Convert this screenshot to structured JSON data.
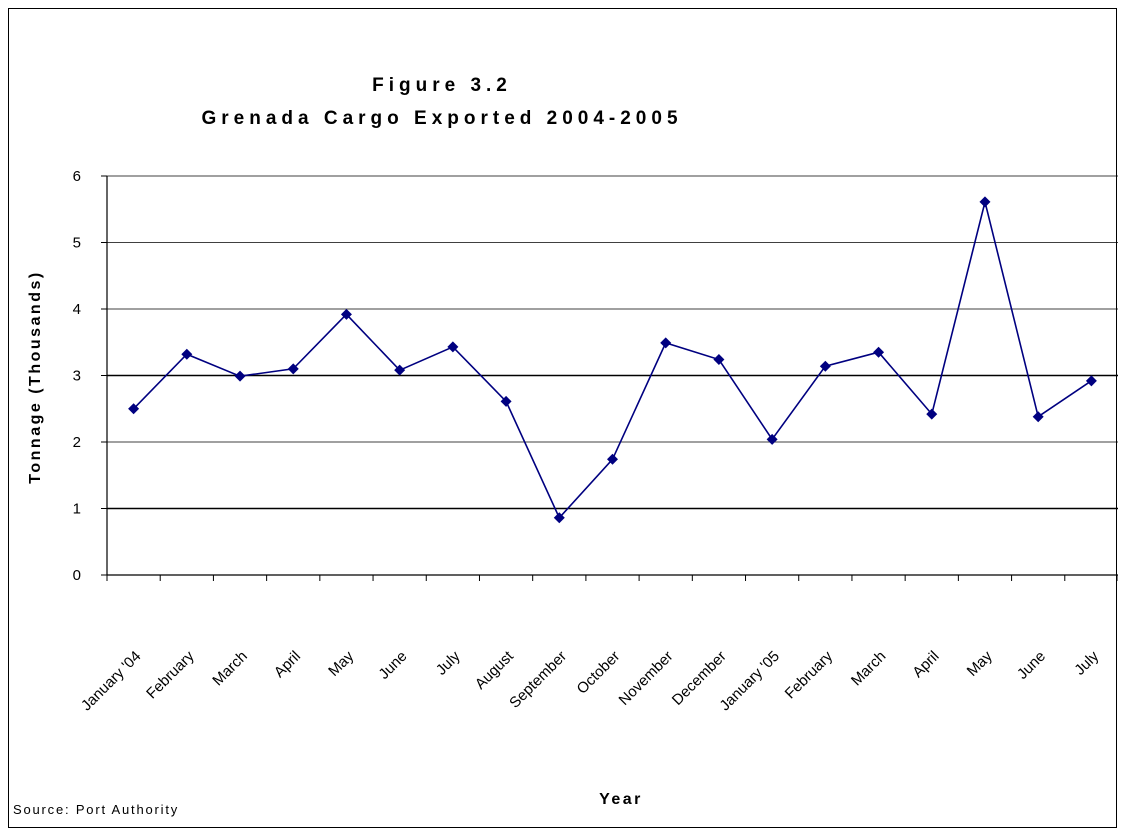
{
  "chart_data": {
    "type": "line",
    "title": "Figure 3.2",
    "subtitle": "Grenada Cargo Exported 2004-2005",
    "xlabel": "Year",
    "ylabel": "Tonnage (Thousands)",
    "source": "Source: Port Authority",
    "ylim": [
      0,
      6
    ],
    "yticks": [
      "0",
      "1",
      "2",
      "3",
      "4",
      "5",
      "6"
    ],
    "grid": true,
    "legend": "none",
    "categories": [
      "January '04",
      "February",
      "March",
      "April",
      "May",
      "June",
      "July",
      "August",
      "September",
      "October",
      "November",
      "December",
      "January '05",
      "February",
      "March",
      "April",
      "May",
      "June",
      "July"
    ],
    "series": [
      {
        "values": [
          2.5,
          3.32,
          2.99,
          3.1,
          3.92,
          3.08,
          3.43,
          2.61,
          0.86,
          1.74,
          3.49,
          3.24,
          2.04,
          3.14,
          3.35,
          2.42,
          5.61,
          2.38,
          2.92
        ],
        "color": "#000080"
      }
    ]
  }
}
